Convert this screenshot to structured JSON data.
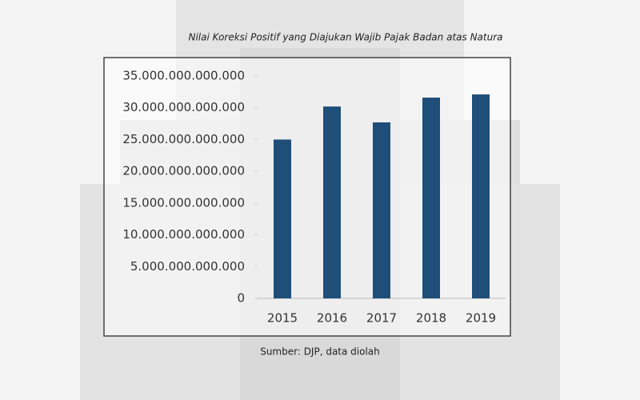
{
  "chart_data": {
    "type": "bar",
    "title": "Nilai Koreksi Positif yang Diajukan Wajib Pajak Badan atas Natura",
    "source": "Sumber: DJP, data diolah",
    "categories": [
      "2015",
      "2016",
      "2017",
      "2018",
      "2019"
    ],
    "values": [
      25000000000000,
      30200000000000,
      27700000000000,
      31600000000000,
      32100000000000
    ],
    "color": "#1f4e79",
    "ylim": [
      0,
      35000000000000
    ],
    "yticks": [
      0,
      {
        "value": 5000000000000,
        "label": "5.000.000.000.000"
      },
      {
        "value": 10000000000000,
        "label": "10.000.000.000.000"
      },
      {
        "value": 15000000000000,
        "label": "15.000.000.000.000"
      },
      {
        "value": 20000000000000,
        "label": "20.000.000.000.000"
      },
      {
        "value": 25000000000000,
        "label": "25.000.000.000.000"
      },
      {
        "value": 30000000000000,
        "label": "30.000.000.000.000"
      },
      {
        "value": 35000000000000,
        "label": "35.000.000.000.000"
      }
    ],
    "grid": false
  }
}
